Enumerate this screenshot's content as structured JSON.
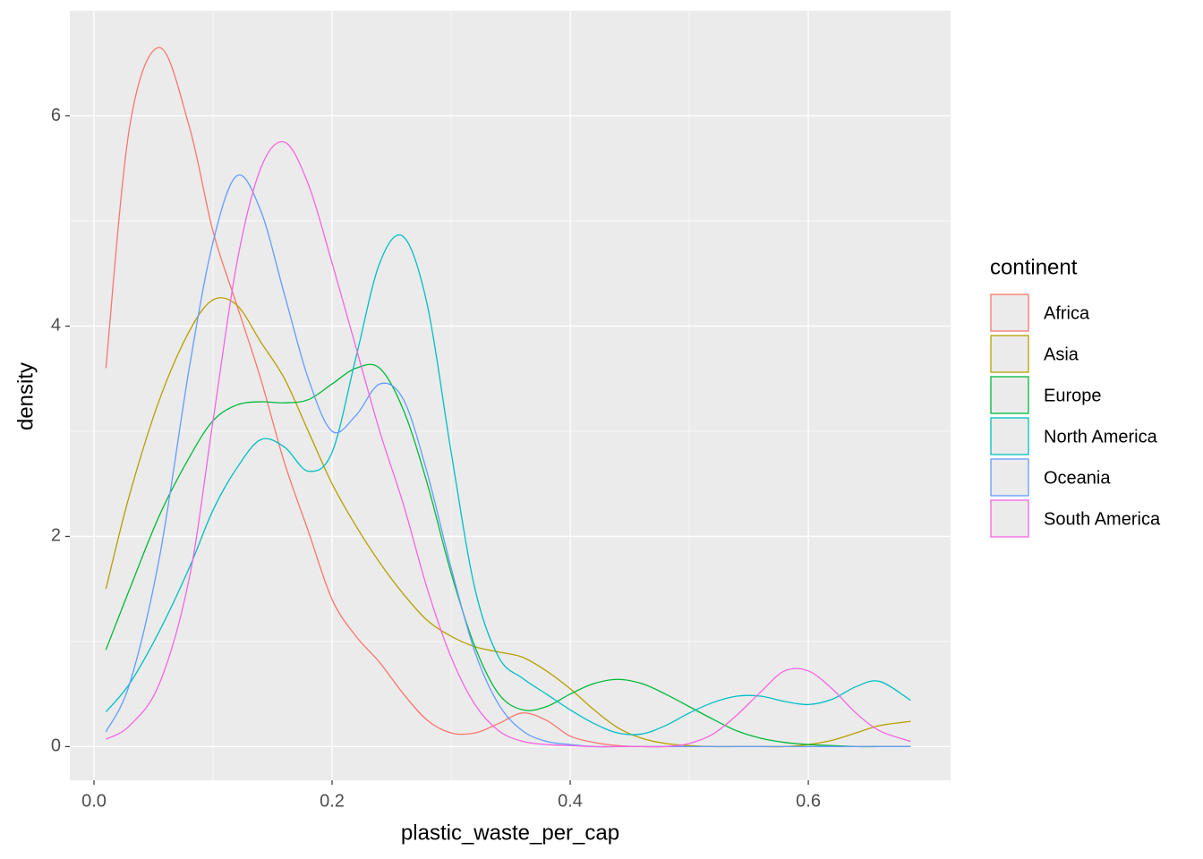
{
  "chart_data": {
    "type": "line",
    "x_label": "plastic_waste_per_cap",
    "y_label": "density",
    "legend_title": "continent",
    "x": [
      0.01,
      0.03,
      0.055,
      0.08,
      0.1,
      0.12,
      0.14,
      0.16,
      0.18,
      0.2,
      0.22,
      0.24,
      0.26,
      0.28,
      0.3,
      0.32,
      0.34,
      0.36,
      0.38,
      0.4,
      0.42,
      0.44,
      0.46,
      0.48,
      0.5,
      0.52,
      0.54,
      0.56,
      0.58,
      0.6,
      0.62,
      0.64,
      0.66,
      0.686
    ],
    "series": [
      {
        "name": "Africa",
        "color": "#f8766d",
        "values": [
          3.6,
          5.9,
          6.65,
          5.9,
          4.9,
          4.2,
          3.5,
          2.7,
          2.05,
          1.4,
          1.05,
          0.8,
          0.5,
          0.25,
          0.13,
          0.13,
          0.22,
          0.32,
          0.25,
          0.1,
          0.04,
          0.01,
          0,
          0,
          0,
          0,
          0,
          0,
          0,
          0,
          0,
          0,
          0,
          0
        ]
      },
      {
        "name": "Asia",
        "color": "#b79f00",
        "values": [
          1.5,
          2.4,
          3.3,
          3.95,
          4.25,
          4.2,
          3.85,
          3.5,
          3.0,
          2.5,
          2.1,
          1.75,
          1.45,
          1.2,
          1.05,
          0.95,
          0.9,
          0.85,
          0.72,
          0.55,
          0.35,
          0.18,
          0.08,
          0.03,
          0.01,
          0,
          0,
          0,
          0,
          0.02,
          0.06,
          0.13,
          0.2,
          0.24
        ]
      },
      {
        "name": "Europe",
        "color": "#00ba38",
        "values": [
          0.92,
          1.5,
          2.2,
          2.75,
          3.1,
          3.25,
          3.28,
          3.27,
          3.3,
          3.45,
          3.6,
          3.6,
          3.2,
          2.5,
          1.65,
          0.95,
          0.5,
          0.35,
          0.38,
          0.5,
          0.6,
          0.64,
          0.6,
          0.5,
          0.38,
          0.26,
          0.15,
          0.08,
          0.04,
          0.02,
          0.01,
          0,
          0,
          0
        ]
      },
      {
        "name": "North America",
        "color": "#00bfc4",
        "values": [
          0.33,
          0.6,
          1.1,
          1.7,
          2.25,
          2.65,
          2.92,
          2.85,
          2.62,
          2.8,
          3.7,
          4.6,
          4.85,
          4.2,
          2.8,
          1.5,
          0.85,
          0.65,
          0.5,
          0.35,
          0.22,
          0.13,
          0.12,
          0.2,
          0.32,
          0.42,
          0.48,
          0.48,
          0.43,
          0.4,
          0.45,
          0.57,
          0.62,
          0.44
        ]
      },
      {
        "name": "Oceania",
        "color": "#619cff",
        "values": [
          0.14,
          0.6,
          1.8,
          3.6,
          4.8,
          5.43,
          5.1,
          4.3,
          3.5,
          3.0,
          3.15,
          3.45,
          3.3,
          2.6,
          1.7,
          0.9,
          0.4,
          0.15,
          0.05,
          0.02,
          0,
          0,
          0,
          0,
          0,
          0,
          0,
          0,
          0,
          0,
          0,
          0,
          0,
          0
        ]
      },
      {
        "name": "South America",
        "color": "#f564e3",
        "values": [
          0.07,
          0.2,
          0.6,
          1.6,
          3.1,
          4.6,
          5.5,
          5.75,
          5.35,
          4.6,
          3.8,
          3.0,
          2.3,
          1.5,
          0.85,
          0.4,
          0.15,
          0.05,
          0.02,
          0.01,
          0,
          0,
          0,
          0,
          0.03,
          0.12,
          0.3,
          0.52,
          0.72,
          0.72,
          0.55,
          0.32,
          0.15,
          0.05
        ]
      }
    ],
    "xlim": [
      -0.0203,
      0.7195
    ],
    "ylim": [
      -0.32,
      7.0
    ],
    "xticks": [
      {
        "value": 0,
        "label": "0.0"
      },
      0.2,
      0.4,
      0.6
    ],
    "yticks": [
      0,
      2,
      4,
      6
    ],
    "grid": true
  }
}
